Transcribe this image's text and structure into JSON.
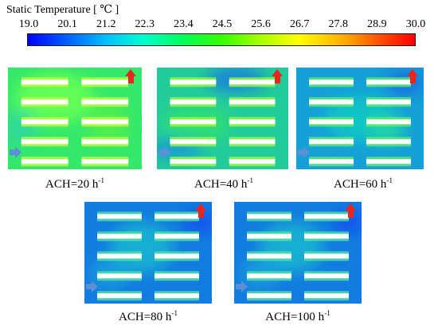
{
  "colorbar": {
    "title": "Static Temperature [ ℃ ]",
    "ticks": [
      "19.0",
      "20.1",
      "21.2",
      "22.3",
      "23.4",
      "24.5",
      "25.6",
      "26.7",
      "27.8",
      "28.9",
      "30.0"
    ],
    "colors": [
      "#0000ff",
      "#00c0ff",
      "#00ff5a",
      "#ffff00",
      "#ff0000"
    ]
  },
  "panels": [
    {
      "caption_prefix": "ACH=20 h",
      "caption_exp": "-1",
      "field": "warm"
    },
    {
      "caption_prefix": "ACH=40 h",
      "caption_exp": "-1",
      "field": "mixed"
    },
    {
      "caption_prefix": "ACH=60 h",
      "caption_exp": "-1",
      "field": "cool"
    },
    {
      "caption_prefix": "ACH=80 h",
      "caption_exp": "-1",
      "field": "cold"
    },
    {
      "caption_prefix": "ACH=100 h",
      "caption_exp": "-1",
      "field": "cold"
    }
  ],
  "icons": {
    "inlet": "inlet-arrow-icon",
    "outlet": "outlet-arrow-icon"
  },
  "accent_colors": {
    "inlet": "#5b8fd6",
    "outlet": "#e8261e",
    "rack": "#ffffff"
  }
}
